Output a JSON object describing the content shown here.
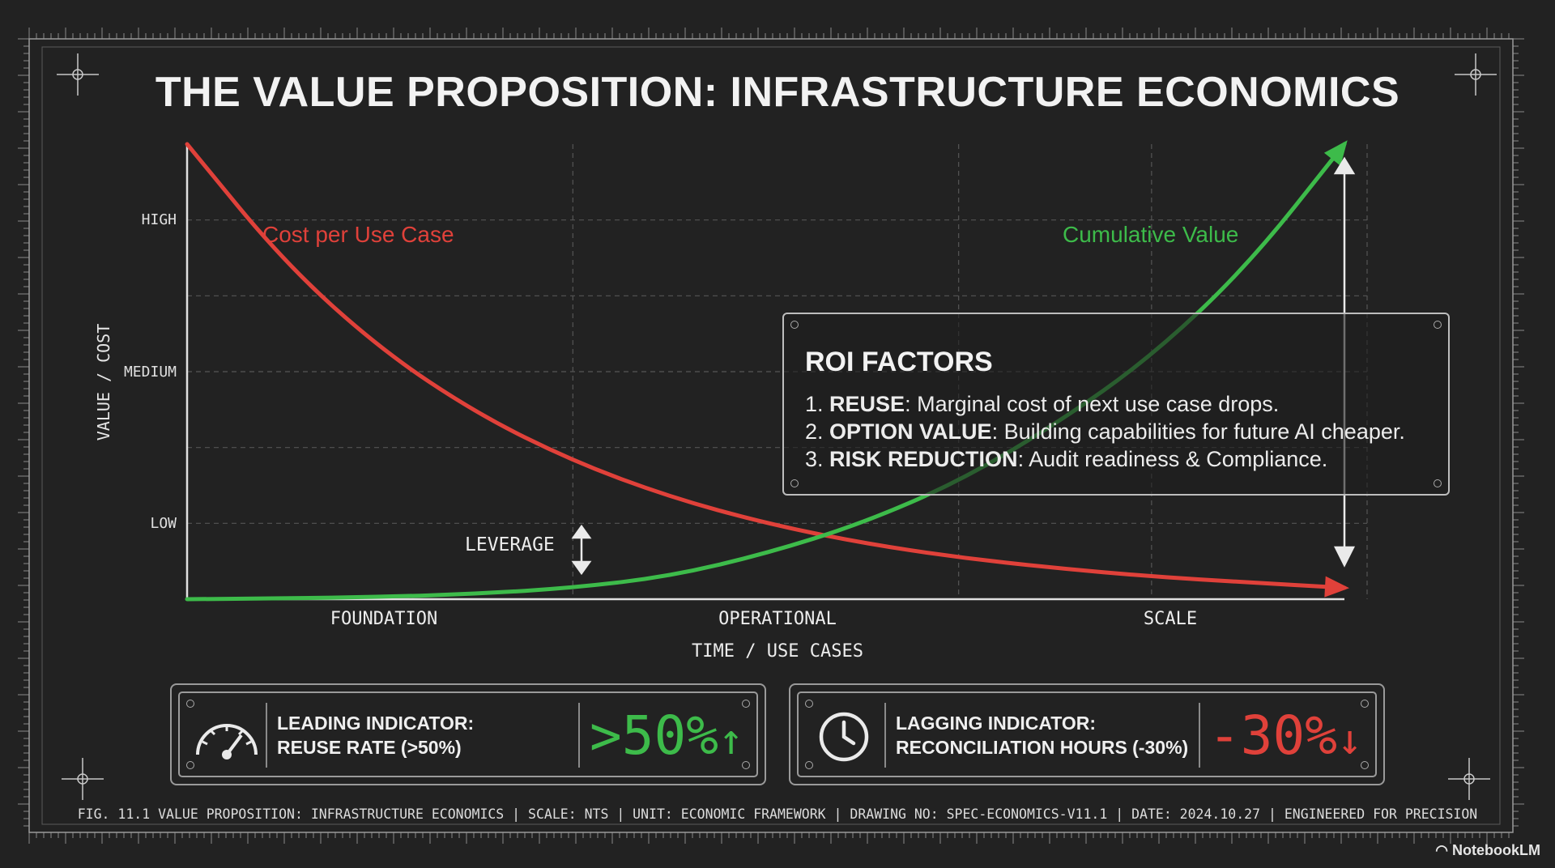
{
  "title": "THE VALUE PROPOSITION: INFRASTRUCTURE ECONOMICS",
  "chart_data": {
    "type": "line",
    "title": "THE VALUE PROPOSITION: INFRASTRUCTURE ECONOMICS",
    "xlabel": "TIME / USE CASES",
    "ylabel": "VALUE / COST",
    "x_categories": [
      "FOUNDATION",
      "OPERATIONAL",
      "SCALE"
    ],
    "xlim": [
      0,
      3
    ],
    "y_ticks": [
      {
        "label": "LOW",
        "value": 1
      },
      {
        "label": "MEDIUM",
        "value": 3
      },
      {
        "label": "HIGH",
        "value": 5
      }
    ],
    "ylim": [
      0,
      6
    ],
    "grid": true,
    "series": [
      {
        "name": "Cost per Use Case",
        "color": "#e0413a",
        "x": [
          0,
          0.25,
          0.5,
          0.75,
          1.0,
          1.25,
          1.5,
          1.75,
          2.0,
          2.25,
          2.5,
          2.75,
          3.0
        ],
        "y": [
          6.0,
          4.45,
          3.3,
          2.45,
          1.82,
          1.35,
          1.0,
          0.74,
          0.55,
          0.41,
          0.3,
          0.22,
          0.15
        ]
      },
      {
        "name": "Cumulative Value",
        "color": "#3dbb4a",
        "x": [
          0,
          0.25,
          0.5,
          0.75,
          1.0,
          1.25,
          1.5,
          1.75,
          2.0,
          2.25,
          2.5,
          2.75,
          3.0
        ],
        "y": [
          0.0,
          0.01,
          0.03,
          0.07,
          0.15,
          0.3,
          0.6,
          1.0,
          1.55,
          2.3,
          3.2,
          4.4,
          6.0
        ]
      }
    ],
    "annotations": [
      "LEVERAGE"
    ]
  },
  "roi": {
    "title": "ROI FACTORS",
    "items": [
      {
        "num": "1.",
        "key": "REUSE",
        "text": ": Marginal cost of next use case drops."
      },
      {
        "num": "2.",
        "key": "OPTION VALUE",
        "text": ": Building capabilities for future AI cheaper."
      },
      {
        "num": "3.",
        "key": "RISK REDUCTION",
        "text": ": Audit readiness & Compliance."
      }
    ]
  },
  "kpis": {
    "leading": {
      "line1": "LEADING INDICATOR:",
      "line2": "REUSE RATE (>50%)",
      "value": ">50%",
      "arrow": "↑",
      "color": "#3dbb4a",
      "icon": "speedometer-icon"
    },
    "lagging": {
      "line1": "LAGGING INDICATOR:",
      "line2": "RECONCILIATION HOURS (-30%)",
      "value": "-30%",
      "arrow": "↓",
      "color": "#e0413a",
      "icon": "clock-icon"
    }
  },
  "footer": "FIG. 11.1 VALUE PROPOSITION: INFRASTRUCTURE ECONOMICS | SCALE: NTS | UNIT: ECONOMIC FRAMEWORK | DRAWING NO: SPEC-ECONOMICS-V11.1 | DATE: 2024.10.27 | ENGINEERED FOR PRECISION",
  "brand": "NotebookLM"
}
